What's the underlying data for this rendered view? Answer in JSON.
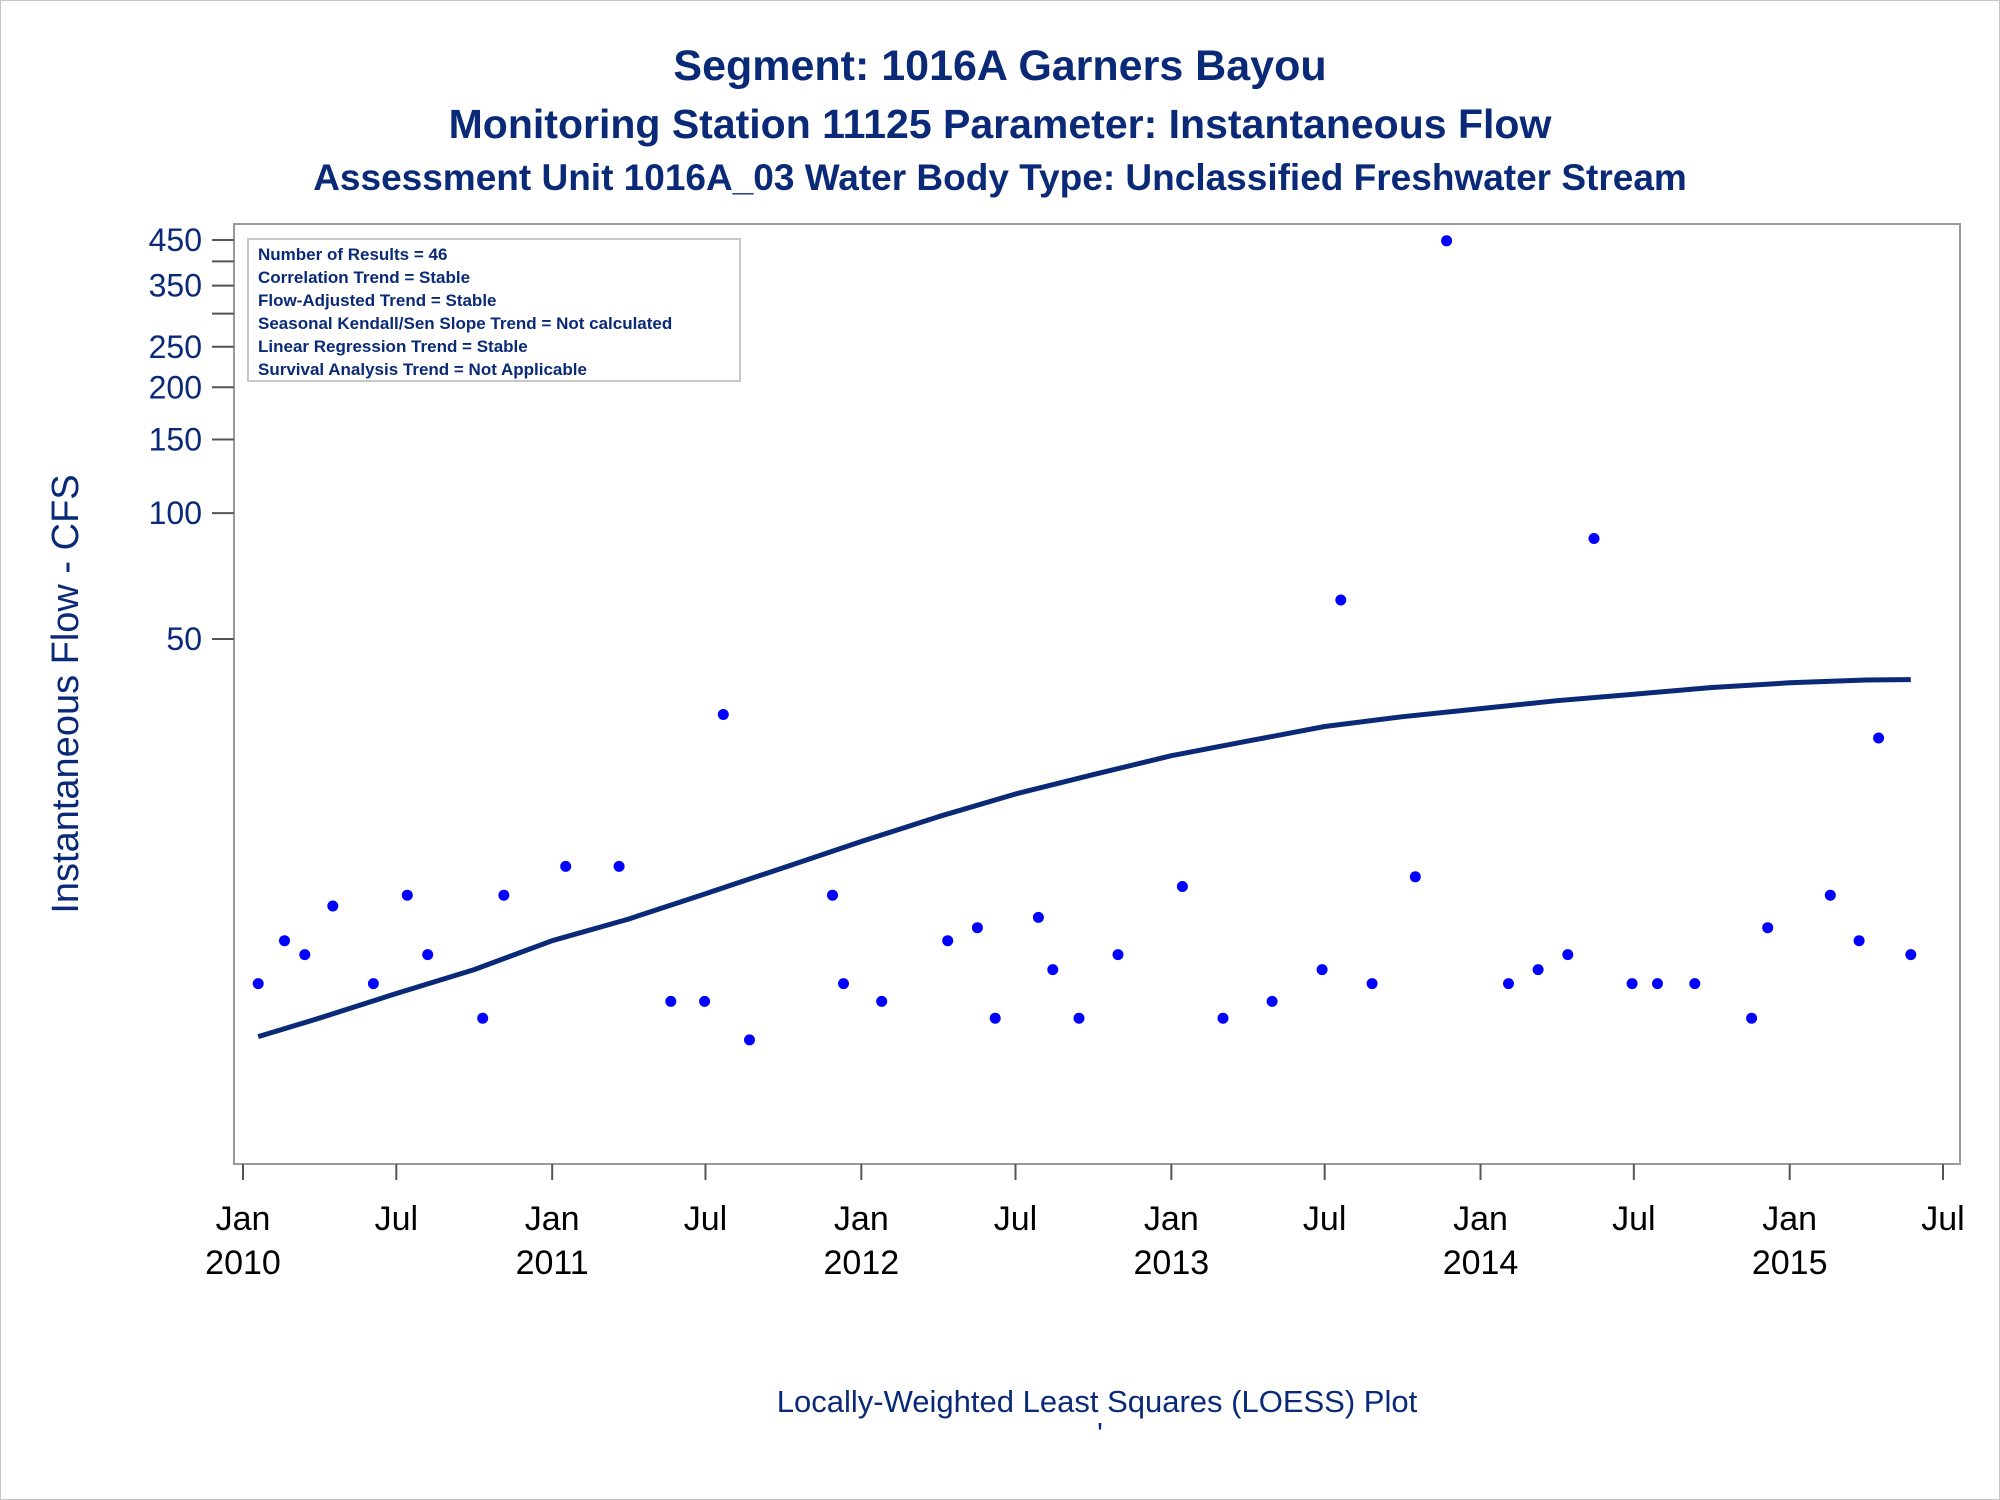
{
  "chart_data": {
    "type": "scatter",
    "title": "Segment: 1016A  Garners Bayou",
    "subtitle": "Monitoring Station 11125 Parameter: Instantaneous Flow",
    "subtitle2": "Assessment Unit 1016A_03   Water Body Type: Unclassified Freshwater Stream",
    "ylabel": "Instantaneous Flow - CFS",
    "footnote": "Locally-Weighted Least Squares (LOESS) Plot",
    "footnote_mark": "'",
    "y_scale": "log",
    "ylim": [
      3,
      450
    ],
    "xlim": [
      "2010-01-01",
      "2015-07-01"
    ],
    "y_ticks": [
      {
        "value": 450,
        "label": "450"
      },
      {
        "value": 400,
        "label": ""
      },
      {
        "value": 350,
        "label": "350"
      },
      {
        "value": 300,
        "label": ""
      },
      {
        "value": 250,
        "label": "250"
      },
      {
        "value": 200,
        "label": "200"
      },
      {
        "value": 150,
        "label": "150"
      },
      {
        "value": 100,
        "label": "100"
      },
      {
        "value": 50,
        "label": "50"
      }
    ],
    "x_ticks": [
      {
        "date": "2010-01-01",
        "month": "Jan",
        "year": "2010"
      },
      {
        "date": "2010-07-01",
        "month": "Jul",
        "year": ""
      },
      {
        "date": "2011-01-01",
        "month": "Jan",
        "year": "2011"
      },
      {
        "date": "2011-07-01",
        "month": "Jul",
        "year": ""
      },
      {
        "date": "2012-01-01",
        "month": "Jan",
        "year": "2012"
      },
      {
        "date": "2012-07-01",
        "month": "Jul",
        "year": ""
      },
      {
        "date": "2013-01-01",
        "month": "Jan",
        "year": "2013"
      },
      {
        "date": "2013-07-01",
        "month": "Jul",
        "year": ""
      },
      {
        "date": "2014-01-01",
        "month": "Jan",
        "year": "2014"
      },
      {
        "date": "2014-07-01",
        "month": "Jul",
        "year": ""
      },
      {
        "date": "2015-01-01",
        "month": "Jan",
        "year": "2015"
      },
      {
        "date": "2015-07-01",
        "month": "Jul",
        "year": ""
      }
    ],
    "grid": false,
    "legend": "none",
    "stats_box": {
      "placement": "top-left",
      "lines": [
        "Number of Results = 46",
        "Correlation Trend = Stable",
        "Flow-Adjusted Trend = Stable",
        "Seasonal Kendall/Sen Slope Trend = Not calculated",
        "Linear Regression Trend = Stable",
        "Survival Analysis Trend = Not Applicable"
      ]
    },
    "series": [
      {
        "type": "scatter",
        "color": "#0000ff",
        "points": [
          {
            "x": "2010-01-19",
            "y": 7.5
          },
          {
            "x": "2010-02-19",
            "y": 9.5
          },
          {
            "x": "2010-03-15",
            "y": 8.8
          },
          {
            "x": "2010-04-17",
            "y": 11.5
          },
          {
            "x": "2010-06-04",
            "y": 7.5
          },
          {
            "x": "2010-07-14",
            "y": 12.2
          },
          {
            "x": "2010-08-07",
            "y": 8.8
          },
          {
            "x": "2010-10-11",
            "y": 6.2
          },
          {
            "x": "2010-11-05",
            "y": 12.2
          },
          {
            "x": "2011-01-17",
            "y": 14.3
          },
          {
            "x": "2011-03-21",
            "y": 14.3
          },
          {
            "x": "2011-05-21",
            "y": 6.8
          },
          {
            "x": "2011-06-30",
            "y": 6.8
          },
          {
            "x": "2011-07-22",
            "y": 33.0
          },
          {
            "x": "2011-08-22",
            "y": 5.5
          },
          {
            "x": "2011-11-28",
            "y": 12.2
          },
          {
            "x": "2011-12-11",
            "y": 7.5
          },
          {
            "x": "2012-01-25",
            "y": 6.8
          },
          {
            "x": "2012-04-12",
            "y": 9.5
          },
          {
            "x": "2012-05-17",
            "y": 10.2
          },
          {
            "x": "2012-06-07",
            "y": 6.2
          },
          {
            "x": "2012-07-28",
            "y": 10.8
          },
          {
            "x": "2012-08-14",
            "y": 8.1
          },
          {
            "x": "2012-09-14",
            "y": 6.2
          },
          {
            "x": "2012-10-30",
            "y": 8.8
          },
          {
            "x": "2013-01-14",
            "y": 12.8
          },
          {
            "x": "2013-03-03",
            "y": 6.2
          },
          {
            "x": "2013-04-30",
            "y": 6.8
          },
          {
            "x": "2013-06-28",
            "y": 8.1
          },
          {
            "x": "2013-07-20",
            "y": 62.0
          },
          {
            "x": "2013-08-26",
            "y": 7.5
          },
          {
            "x": "2013-10-16",
            "y": 13.5
          },
          {
            "x": "2013-11-22",
            "y": 448.0
          },
          {
            "x": "2014-02-03",
            "y": 7.5
          },
          {
            "x": "2014-03-10",
            "y": 8.1
          },
          {
            "x": "2014-04-14",
            "y": 8.8
          },
          {
            "x": "2014-05-15",
            "y": 87.0
          },
          {
            "x": "2014-06-29",
            "y": 7.5
          },
          {
            "x": "2014-07-29",
            "y": 7.5
          },
          {
            "x": "2014-09-11",
            "y": 7.5
          },
          {
            "x": "2014-11-17",
            "y": 6.2
          },
          {
            "x": "2014-12-06",
            "y": 10.2
          },
          {
            "x": "2015-02-18",
            "y": 12.2
          },
          {
            "x": "2015-03-24",
            "y": 9.5
          },
          {
            "x": "2015-04-16",
            "y": 29.0
          },
          {
            "x": "2015-05-24",
            "y": 8.8
          }
        ]
      },
      {
        "type": "line",
        "label": "LOESS",
        "color": "#0a2a78",
        "points": [
          {
            "x": "2010-01-19",
            "y": 5.6
          },
          {
            "x": "2010-04-01",
            "y": 6.2
          },
          {
            "x": "2010-07-01",
            "y": 7.1
          },
          {
            "x": "2010-10-01",
            "y": 8.1
          },
          {
            "x": "2011-01-01",
            "y": 9.5
          },
          {
            "x": "2011-04-01",
            "y": 10.7
          },
          {
            "x": "2011-07-01",
            "y": 12.3
          },
          {
            "x": "2011-10-01",
            "y": 14.2
          },
          {
            "x": "2012-01-01",
            "y": 16.4
          },
          {
            "x": "2012-04-01",
            "y": 18.8
          },
          {
            "x": "2012-07-01",
            "y": 21.3
          },
          {
            "x": "2012-10-01",
            "y": 23.7
          },
          {
            "x": "2013-01-01",
            "y": 26.3
          },
          {
            "x": "2013-04-01",
            "y": 28.5
          },
          {
            "x": "2013-07-01",
            "y": 30.9
          },
          {
            "x": "2013-10-01",
            "y": 32.6
          },
          {
            "x": "2014-01-01",
            "y": 34.1
          },
          {
            "x": "2014-04-01",
            "y": 35.6
          },
          {
            "x": "2014-07-01",
            "y": 36.9
          },
          {
            "x": "2014-10-01",
            "y": 38.3
          },
          {
            "x": "2015-01-01",
            "y": 39.3
          },
          {
            "x": "2015-04-01",
            "y": 39.9
          },
          {
            "x": "2015-05-24",
            "y": 40.0
          }
        ]
      }
    ]
  }
}
